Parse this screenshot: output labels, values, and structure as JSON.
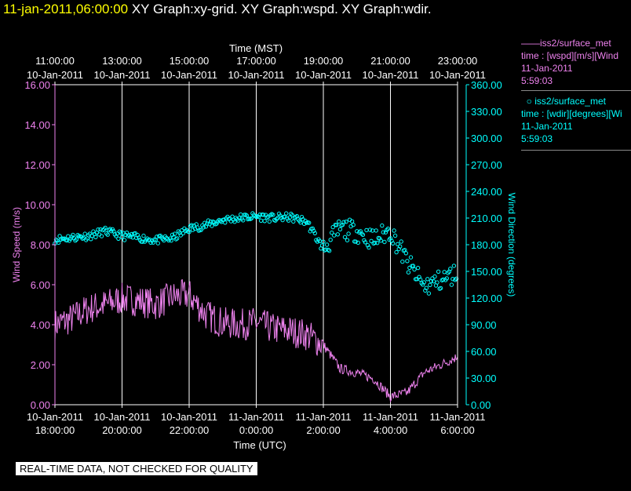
{
  "header": {
    "timestamp": "11-jan-2011,06:00:00",
    "graphs": "XY Graph:xy-grid.  XY Graph:wspd.  XY Graph:wdir."
  },
  "legend": {
    "wspd": {
      "title": "iss2/surface_met",
      "line2": "time : [wspd][m/s][Wind",
      "date": "11-Jan-2011",
      "time": "5:59:03"
    },
    "wdir": {
      "title": "iss2/surface_met",
      "line2": "time : [wdir][degrees][Wi",
      "date": "11-Jan-2011",
      "time": "5:59:03"
    }
  },
  "notice": "REAL-TIME DATA, NOT CHECKED FOR QUALITY",
  "colors": {
    "wspd": "#ee82ee",
    "wdir": "#00ffff",
    "axis": "#ffffff",
    "notice_bg": "#ffffff"
  },
  "chart_data": {
    "type": "line",
    "top_axis": {
      "label": "Time (MST)",
      "ticks": [
        {
          "time": "11:00:00",
          "date": "10-Jan-2011"
        },
        {
          "time": "13:00:00",
          "date": "10-Jan-2011"
        },
        {
          "time": "15:00:00",
          "date": "10-Jan-2011"
        },
        {
          "time": "17:00:00",
          "date": "10-Jan-2011"
        },
        {
          "time": "19:00:00",
          "date": "10-Jan-2011"
        },
        {
          "time": "21:00:00",
          "date": "10-Jan-2011"
        },
        {
          "time": "23:00:00",
          "date": "10-Jan-2011"
        }
      ]
    },
    "bottom_axis": {
      "label": "Time (UTC)",
      "ticks": [
        {
          "date": "10-Jan-2011",
          "time": "18:00:00"
        },
        {
          "date": "10-Jan-2011",
          "time": "20:00:00"
        },
        {
          "date": "10-Jan-2011",
          "time": "22:00:00"
        },
        {
          "date": "11-Jan-2011",
          "time": "0:00:00"
        },
        {
          "date": "11-Jan-2011",
          "time": "2:00:00"
        },
        {
          "date": "11-Jan-2011",
          "time": "4:00:00"
        },
        {
          "date": "11-Jan-2011",
          "time": "6:00:00"
        }
      ]
    },
    "x_range_utc": [
      "10-Jan-2011 18:00:00",
      "11-Jan-2011 06:00:00"
    ],
    "x_units": "hours since 10-Jan-2011 18:00 UTC",
    "left_axis": {
      "label": "Wind Speed (m/s)",
      "range": [
        0,
        16
      ],
      "ticks": [
        "0.00",
        "2.00",
        "4.00",
        "6.00",
        "8.00",
        "10.00",
        "12.00",
        "14.00",
        "16.00"
      ]
    },
    "right_axis": {
      "label": "Wind Direction (degrees)",
      "range": [
        0,
        360
      ],
      "ticks": [
        "0.00",
        "30.00",
        "60.00",
        "90.00",
        "120.00",
        "150.00",
        "180.00",
        "210.00",
        "240.00",
        "270.00",
        "300.00",
        "330.00",
        "360.00"
      ]
    },
    "vertical_grid": true,
    "series": [
      {
        "name": "iss2/surface_met",
        "variable": "wspd",
        "style": "line",
        "axis": "left",
        "x": [
          0,
          0.5,
          1,
          1.5,
          2,
          2.5,
          3,
          3.5,
          4,
          4.5,
          5,
          5.5,
          6,
          6.5,
          7,
          7.5,
          8,
          8.5,
          9,
          9.5,
          10,
          10.5,
          11,
          11.5,
          12
        ],
        "y": [
          4.0,
          4.3,
          4.8,
          5.0,
          5.3,
          5.2,
          5.0,
          5.4,
          5.5,
          4.5,
          4.1,
          4.0,
          4.1,
          3.8,
          3.7,
          3.5,
          3.0,
          1.8,
          1.6,
          1.3,
          0.4,
          0.6,
          1.6,
          2.0,
          2.4
        ]
      },
      {
        "name": "iss2/surface_met",
        "variable": "wdir",
        "style": "points",
        "axis": "right",
        "x": [
          0,
          0.5,
          1,
          1.5,
          2,
          2.5,
          3,
          3.5,
          4,
          4.5,
          5,
          5.5,
          6,
          6.5,
          7,
          7.5,
          8,
          8.5,
          9,
          9.5,
          10,
          10.5,
          11,
          11.5,
          12
        ],
        "y": [
          186,
          188,
          190,
          195,
          190,
          188,
          185,
          187,
          198,
          202,
          208,
          210,
          212,
          210,
          211,
          206,
          175,
          198,
          195,
          185,
          196,
          160,
          133,
          140,
          148
        ]
      }
    ]
  }
}
